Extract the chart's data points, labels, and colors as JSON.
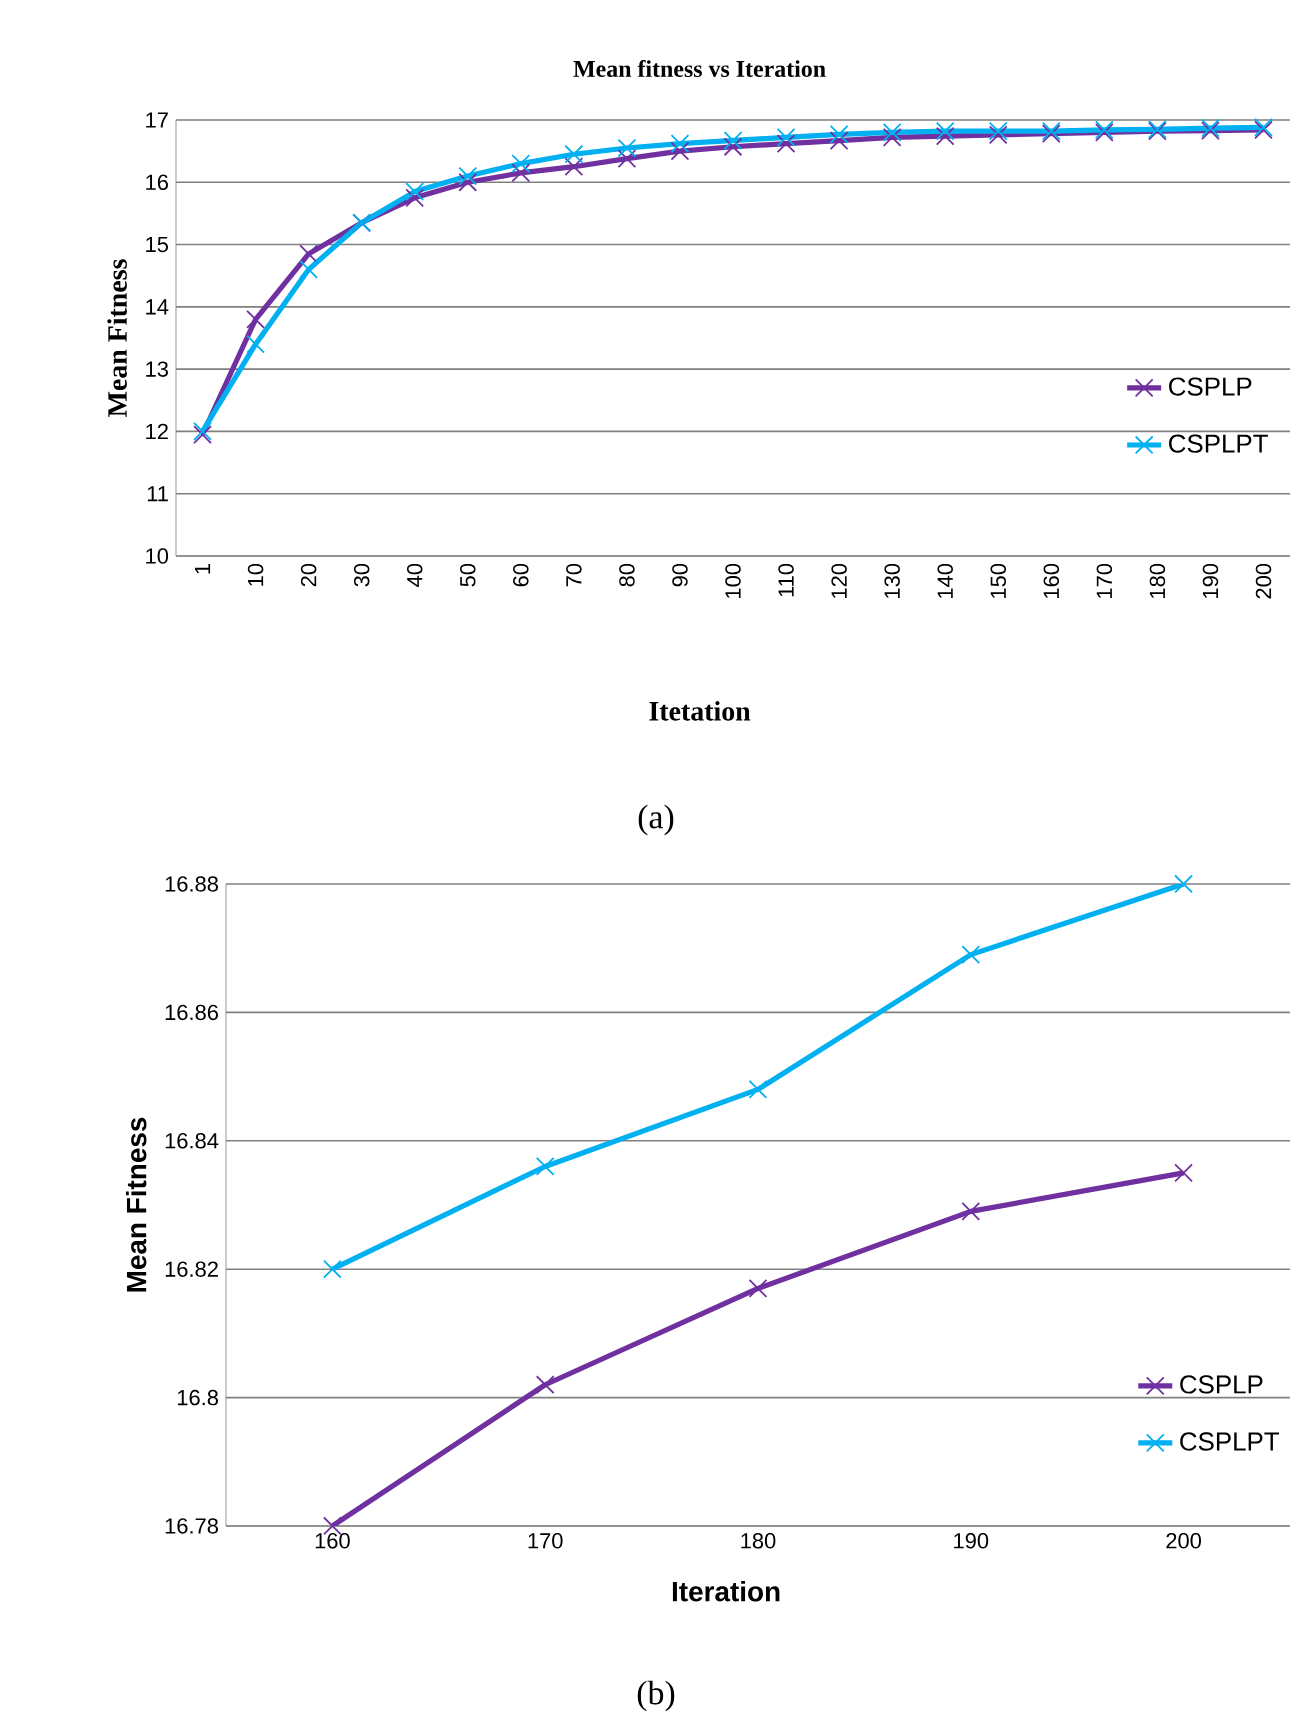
{
  "chart_data": [
    {
      "type": "line",
      "title": "Mean fitness vs Iteration",
      "xlabel": "Itetation",
      "ylabel": "Mean Fitness",
      "categories": [
        "1",
        "10",
        "20",
        "30",
        "40",
        "50",
        "60",
        "70",
        "80",
        "90",
        "100",
        "110",
        "120",
        "130",
        "140",
        "150",
        "160",
        "170",
        "180",
        "190",
        "200"
      ],
      "series": [
        {
          "name": "CSPLP",
          "color": "#7030a0",
          "marker": "cross",
          "values": [
            11.95,
            13.8,
            14.85,
            15.35,
            15.75,
            16.0,
            16.15,
            16.25,
            16.38,
            16.5,
            16.57,
            16.62,
            16.67,
            16.72,
            16.74,
            16.76,
            16.78,
            16.8,
            16.82,
            16.83,
            16.84
          ]
        },
        {
          "name": "CSPLPT",
          "color": "#00b0f0",
          "marker": "cross",
          "values": [
            12.0,
            13.4,
            14.6,
            15.35,
            15.85,
            16.1,
            16.3,
            16.45,
            16.55,
            16.62,
            16.67,
            16.72,
            16.77,
            16.8,
            16.82,
            16.82,
            16.82,
            16.84,
            16.85,
            16.87,
            16.88
          ]
        }
      ],
      "ylim": [
        10,
        17
      ],
      "yticks": [
        10,
        11,
        12,
        13,
        14,
        15,
        16,
        17
      ],
      "grid": "y",
      "legend": "right",
      "line_style": "solid",
      "annotations": [
        "(a)"
      ]
    },
    {
      "type": "line",
      "xlabel": "Iteration",
      "ylabel": "Mean Fitness",
      "categories": [
        "160",
        "170",
        "180",
        "190",
        "200"
      ],
      "series": [
        {
          "name": "CSPLP",
          "color": "#7030a0",
          "marker": "cross",
          "values": [
            16.78,
            16.802,
            16.817,
            16.829,
            16.835
          ]
        },
        {
          "name": "CSPLPT",
          "color": "#00b0f0",
          "marker": "cross",
          "values": [
            16.82,
            16.836,
            16.848,
            16.869,
            16.88
          ]
        }
      ],
      "ylim": [
        16.78,
        16.88
      ],
      "yticks": [
        16.78,
        16.8,
        16.82,
        16.84,
        16.86,
        16.88
      ],
      "grid": "y",
      "legend": "bottom right",
      "line_style": "solid",
      "annotations": [
        "(b)"
      ]
    }
  ]
}
